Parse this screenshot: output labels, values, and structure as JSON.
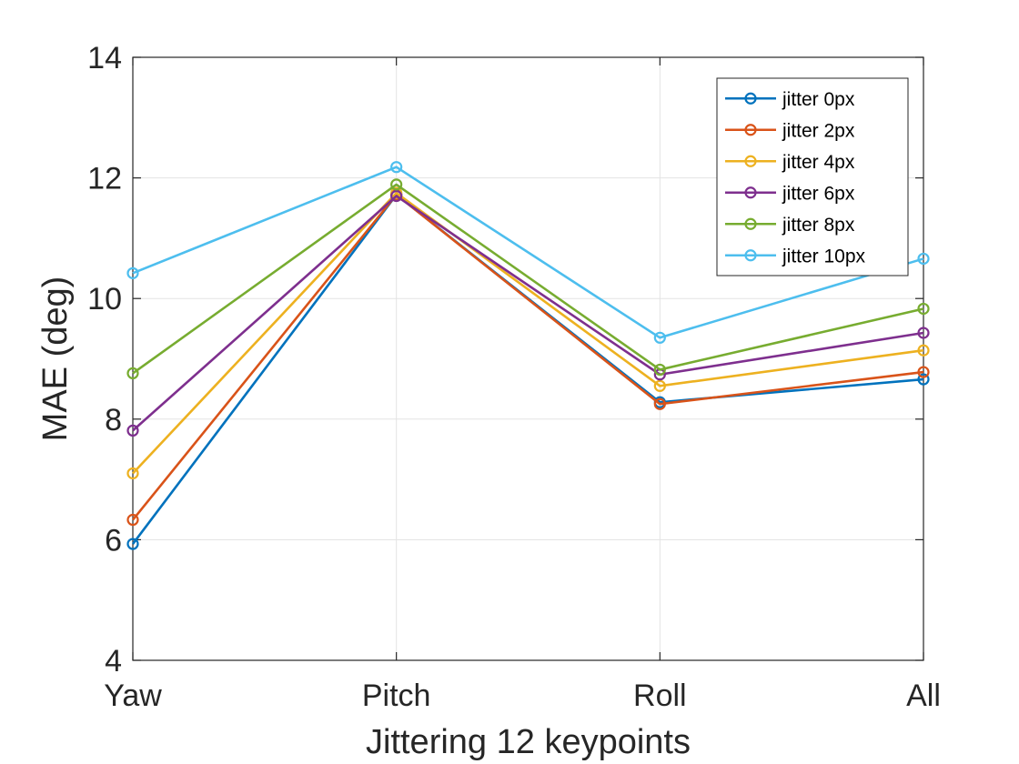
{
  "chart_data": {
    "type": "line",
    "title": "",
    "xlabel": "Jittering 12 keypoints",
    "ylabel": "MAE (deg)",
    "categories": [
      "Yaw",
      "Pitch",
      "Roll",
      "All"
    ],
    "ylim": [
      4,
      14
    ],
    "yticks": [
      4,
      6,
      8,
      10,
      12,
      14
    ],
    "grid": true,
    "legend_position": "top-right",
    "marker": "circle",
    "series": [
      {
        "name": "jitter 0px",
        "color": "#0072BD",
        "values": [
          5.93,
          11.72,
          8.28,
          8.66
        ]
      },
      {
        "name": "jitter 2px",
        "color": "#D95319",
        "values": [
          6.33,
          11.72,
          8.25,
          8.78
        ]
      },
      {
        "name": "jitter 4px",
        "color": "#EDB120",
        "values": [
          7.1,
          11.75,
          8.55,
          9.14
        ]
      },
      {
        "name": "jitter 6px",
        "color": "#7E2F8E",
        "values": [
          7.81,
          11.7,
          8.74,
          9.43
        ]
      },
      {
        "name": "jitter 8px",
        "color": "#77AC30",
        "values": [
          8.76,
          11.89,
          8.82,
          9.83
        ]
      },
      {
        "name": "jitter 10px",
        "color": "#4DBEEE",
        "values": [
          10.42,
          12.18,
          9.35,
          10.66
        ]
      }
    ]
  }
}
